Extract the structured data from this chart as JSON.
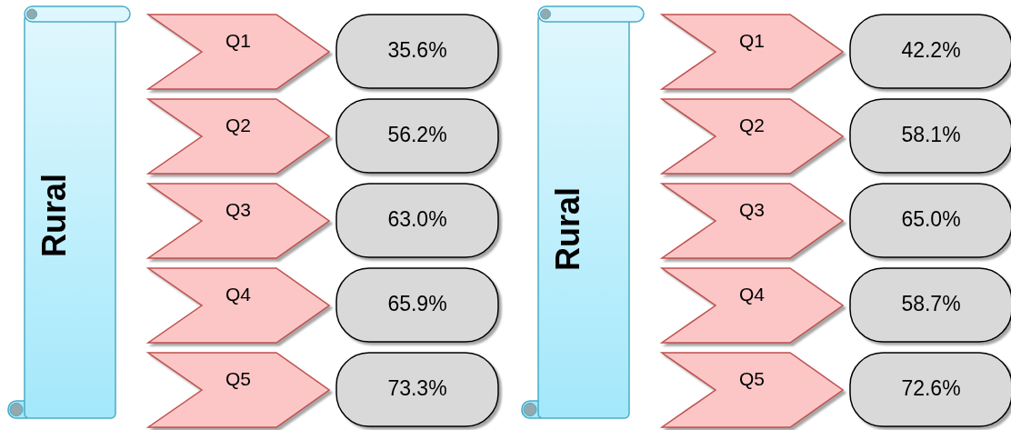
{
  "chart_data": [
    {
      "type": "other",
      "title": "Rural",
      "categories": [
        "Q1",
        "Q2",
        "Q3",
        "Q4",
        "Q5"
      ],
      "values": [
        35.6,
        56.2,
        63.0,
        65.9,
        73.3
      ],
      "value_labels": [
        "35.6%",
        "56.2%",
        "63.0%",
        "65.9%",
        "73.3%"
      ],
      "color": "#d9d9d9"
    },
    {
      "type": "other",
      "title": "Rural",
      "categories": [
        "Q1",
        "Q2",
        "Q3",
        "Q4",
        "Q5"
      ],
      "values": [
        42.2,
        58.1,
        65.0,
        58.7,
        72.6
      ],
      "value_labels": [
        "42.2%",
        "58.1%",
        "65.0%",
        "58.7%",
        "72.6%"
      ],
      "color": "#d9d9d9"
    }
  ]
}
